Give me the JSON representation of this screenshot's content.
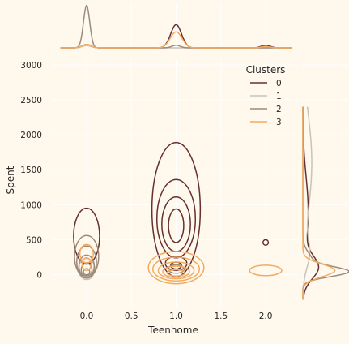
{
  "chart_data": {
    "type": "kde_joint",
    "xlabel": "Teenhome",
    "ylabel": "Spent",
    "xlim": [
      -0.37,
      2.37
    ],
    "ylim": [
      -470,
      3080
    ],
    "x_ticks": [
      0.0,
      0.5,
      1.0,
      1.5,
      2.0
    ],
    "x_tick_labels": [
      "0.0",
      "0.5",
      "1.0",
      "1.5",
      "2.0"
    ],
    "y_ticks": [
      0,
      500,
      1000,
      1500,
      2000,
      2500,
      3000
    ],
    "y_tick_labels": [
      "0",
      "500",
      "1000",
      "1500",
      "2000",
      "2500",
      "3000"
    ],
    "grid": true,
    "legend": {
      "title": "Clusters",
      "placement": "top-right",
      "entries": [
        "0",
        "1",
        "2",
        "3"
      ]
    },
    "series": [
      {
        "name": "0",
        "color": "#682F2F",
        "contours": [
          {
            "x": 0.0,
            "y": 550,
            "rx": 0.145,
            "ry": 400
          },
          {
            "x": 1.0,
            "y": 930,
            "rx": 0.27,
            "ry": 960
          },
          {
            "x": 1.0,
            "y": 800,
            "rx": 0.215,
            "ry": 560
          },
          {
            "x": 1.0,
            "y": 720,
            "rx": 0.16,
            "ry": 390
          },
          {
            "x": 1.0,
            "y": 700,
            "rx": 0.085,
            "ry": 240
          },
          {
            "x": 1.0,
            "y": 160,
            "rx": 0.12,
            "ry": 100
          },
          {
            "x": 1.0,
            "y": 130,
            "rx": 0.06,
            "ry": 50
          },
          {
            "x": 2.0,
            "y": 460,
            "rx": 0.03,
            "ry": 40
          }
        ]
      },
      {
        "name": "1",
        "color": "#C9C2BA",
        "contours": [
          {
            "x": 0.0,
            "y": 80,
            "rx": 0.09,
            "ry": 150
          }
        ]
      },
      {
        "name": "2",
        "color": "#9E8A78",
        "contours": [
          {
            "x": 0.0,
            "y": 260,
            "rx": 0.135,
            "ry": 300
          },
          {
            "x": 0.0,
            "y": 180,
            "rx": 0.11,
            "ry": 230
          },
          {
            "x": 0.0,
            "y": 120,
            "rx": 0.085,
            "ry": 160
          },
          {
            "x": 0.0,
            "y": 70,
            "rx": 0.06,
            "ry": 90
          },
          {
            "x": 0.0,
            "y": 40,
            "rx": 0.035,
            "ry": 45
          },
          {
            "x": 1.0,
            "y": 80,
            "rx": 0.09,
            "ry": 60
          }
        ]
      },
      {
        "name": "3",
        "color": "#F3AB60",
        "contours": [
          {
            "x": 0.0,
            "y": 300,
            "rx": 0.075,
            "ry": 130
          },
          {
            "x": 0.0,
            "y": 150,
            "rx": 0.05,
            "ry": 90
          },
          {
            "x": 1.0,
            "y": 100,
            "rx": 0.31,
            "ry": 230
          },
          {
            "x": 1.0,
            "y": 80,
            "rx": 0.26,
            "ry": 170
          },
          {
            "x": 1.0,
            "y": 60,
            "rx": 0.2,
            "ry": 120
          },
          {
            "x": 1.0,
            "y": 40,
            "rx": 0.15,
            "ry": 80
          },
          {
            "x": 1.0,
            "y": 25,
            "rx": 0.1,
            "ry": 45
          },
          {
            "x": 2.0,
            "y": 60,
            "rx": 0.18,
            "ry": 75
          }
        ]
      }
    ],
    "marginal_x": [
      {
        "name": "0",
        "peaks": [
          {
            "x": 0.0,
            "h": 0.06,
            "w": 0.05
          },
          {
            "x": 1.0,
            "h": 0.52,
            "w": 0.06
          },
          {
            "x": 2.0,
            "h": 0.06,
            "w": 0.05
          }
        ]
      },
      {
        "name": "1",
        "peaks": [
          {
            "x": 0.0,
            "h": 0.05,
            "w": 0.05
          }
        ]
      },
      {
        "name": "2",
        "peaks": [
          {
            "x": 0.0,
            "h": 0.95,
            "w": 0.035
          },
          {
            "x": 1.0,
            "h": 0.06,
            "w": 0.045
          }
        ]
      },
      {
        "name": "3",
        "peaks": [
          {
            "x": 0.0,
            "h": 0.08,
            "w": 0.05
          },
          {
            "x": 1.0,
            "h": 0.36,
            "w": 0.065
          },
          {
            "x": 2.0,
            "h": 0.03,
            "w": 0.05
          }
        ]
      }
    ],
    "marginal_y": [
      {
        "name": "0",
        "peaks": [
          {
            "y": 100,
            "h": 0.32,
            "w": 160
          },
          {
            "y": 900,
            "h": 0.12,
            "w": 500
          }
        ]
      },
      {
        "name": "1",
        "peaks": [
          {
            "y": 1600,
            "h": 0.2,
            "w": 700
          },
          {
            "y": 300,
            "h": 0.12,
            "w": 200
          }
        ]
      },
      {
        "name": "2",
        "peaks": [
          {
            "y": 40,
            "h": 0.95,
            "w": 70
          },
          {
            "y": 200,
            "h": 0.2,
            "w": 120
          }
        ]
      },
      {
        "name": "3",
        "peaks": [
          {
            "y": 60,
            "h": 0.72,
            "w": 90
          }
        ]
      }
    ]
  }
}
